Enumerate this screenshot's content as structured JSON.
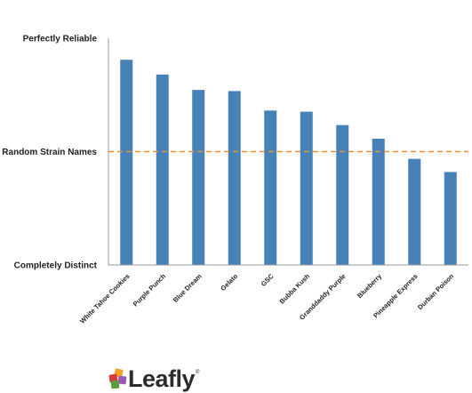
{
  "chart_data": {
    "type": "bar",
    "categories": [
      "White Tahoe Cookies",
      "Purple Punch",
      "Blue Dream",
      "Gelato",
      "GSC",
      "Bubba Kush",
      "Granddaddy Purple",
      "Blueberry",
      "Pineapple Express",
      "Durban Poison"
    ],
    "values": [
      0.905,
      0.84,
      0.772,
      0.767,
      0.681,
      0.676,
      0.617,
      0.557,
      0.468,
      0.41
    ],
    "reference_line": {
      "label": "Random Strain Names",
      "value": 0.5,
      "color": "#e8902f",
      "style": "dashed"
    },
    "y_tick_labels": [
      {
        "value": 1.0,
        "label": "Perfectly Reliable"
      },
      {
        "value": 0.5,
        "label": "Random Strain Names"
      },
      {
        "value": 0.0,
        "label": "Completely Distinct"
      }
    ],
    "ylim": [
      0,
      1
    ],
    "bar_color": "#4682b8",
    "grid": false,
    "legend": "none",
    "title": "",
    "xlabel": "",
    "ylabel": ""
  },
  "logo": {
    "text": "Leafly",
    "trademark": "®",
    "colors": [
      "#f0a027",
      "#d63a3a",
      "#9b59b6",
      "#5b9c3b"
    ]
  }
}
